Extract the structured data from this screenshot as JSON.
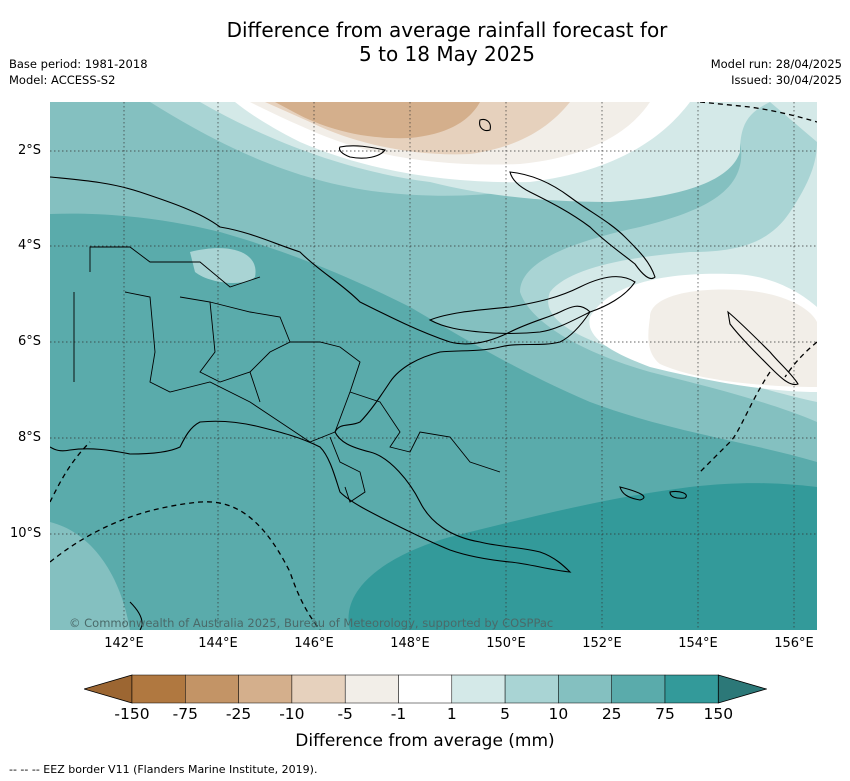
{
  "title": {
    "line1": "Difference from average rainfall forecast for",
    "line2": "5 to 18 May 2025"
  },
  "meta_left": {
    "base_period": "Base period: 1981-2018",
    "model": "Model: ACCESS-S2"
  },
  "meta_right": {
    "model_run": "Model run: 28/04/2025",
    "issued": "Issued: 30/04/2025"
  },
  "map": {
    "lat_labels": [
      "2°S",
      "4°S",
      "6°S",
      "8°S",
      "10°S"
    ],
    "lon_labels": [
      "142°E",
      "144°E",
      "146°E",
      "148°E",
      "150°E",
      "152°E",
      "154°E",
      "156°E"
    ],
    "copyright": "© Commonwealth of Australia 2025, Bureau of Meteorology, supported by COSPPac"
  },
  "colorbar": {
    "ticks": [
      "-150",
      "-75",
      "-25",
      "-10",
      "-5",
      "-1",
      "1",
      "5",
      "10",
      "25",
      "75",
      "150"
    ],
    "colors": [
      "#9c6632",
      "#b07840",
      "#c39466",
      "#d4af8c",
      "#e6d1bd",
      "#f2eee8",
      "#ffffff",
      "#d4e9e8",
      "#a9d4d4",
      "#84c0c0",
      "#5aabab",
      "#339a9a",
      "#2c7878"
    ],
    "title": "Difference from average (mm)"
  },
  "legend": {
    "eez": "--  --  -- EEZ border V11 (Flanders Marine Institute, 2019)."
  }
}
